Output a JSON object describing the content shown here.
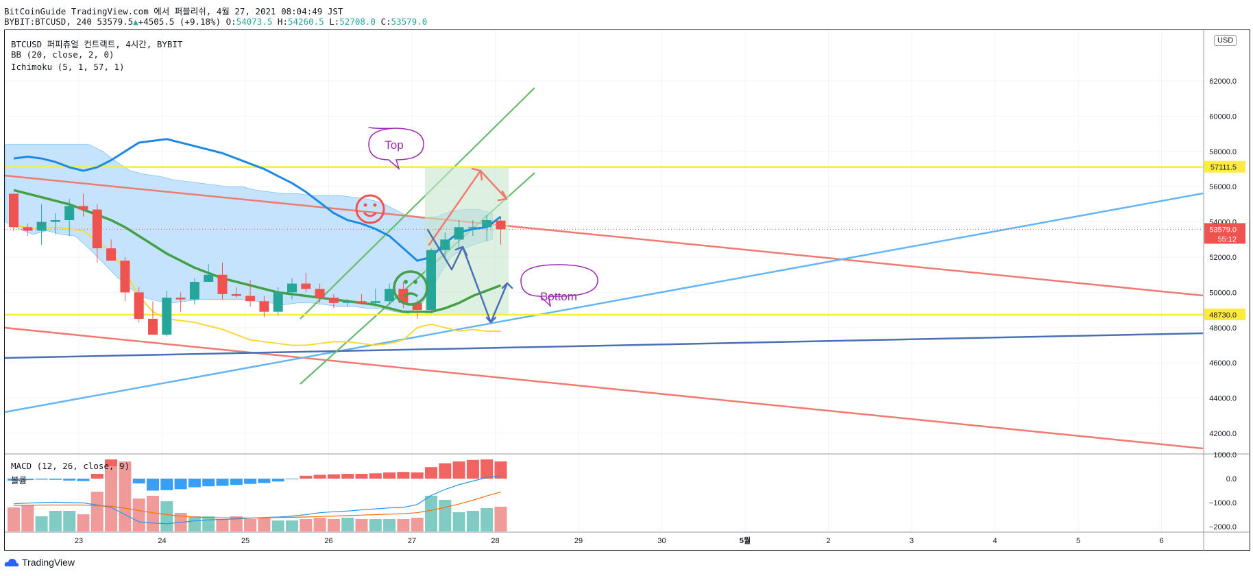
{
  "header": {
    "line1": "BitCoinGuide TradingView.com 에서 퍼블리쉬, 4월 27, 2021 08:04:49 JST",
    "symbol_tf": "BYBIT:BTCUSD, 240 53579.5",
    "up_arrow": "▲",
    "change": "+4505.5 (+9.18%)",
    "o_label": "O:",
    "o_val": "54073.5",
    "h_label": "H:",
    "h_val": "54260.5",
    "l_label": "L:",
    "l_val": "52708.0",
    "c_label": "C:",
    "c_val": "53579.0"
  },
  "legend": {
    "title": "BTCUSD 퍼피츄얼 컨트랙트, 4시간, BYBIT",
    "bb": "BB (20, close, 2, 0)",
    "ichimoku": "Ichimoku (5, 1, 57, 1)",
    "macd": "MACD (12, 26, close, 9)",
    "volume": "볼륨"
  },
  "currency_badge": "USD",
  "brand": "TradingView",
  "annotations": {
    "top": "Top",
    "bottom": "Bottom"
  },
  "colors": {
    "up": "#26a69a",
    "down": "#ef5350",
    "yellow": "#ffeb3b",
    "red_line": "#f07970",
    "green_line": "#66bb6a",
    "light_blue": "#64b5f6",
    "dark_blue": "#4a6fb5",
    "bubble": "#9c27b0",
    "cloud": "#bbdefb"
  },
  "chart_data": [
    {
      "type": "candlestick",
      "title": "BTCUSD 퍼피츄얼 컨트랙트, 4시간, BYBIT",
      "x_ticks": [
        "23",
        "24",
        "25",
        "26",
        "27",
        "28",
        "29",
        "30",
        "5월",
        "2",
        "3",
        "4",
        "5",
        "6"
      ],
      "y_ticks": [
        "42000.0",
        "44000.0",
        "46000.0",
        "48000.0",
        "50000.0",
        "52000.0",
        "54000.0",
        "56000.0",
        "58000.0",
        "60000.0",
        "62000.0"
      ],
      "ylim": [
        41200,
        64500
      ],
      "price_labels": [
        {
          "value": 57111.5,
          "text": "57111.5",
          "color": "#ffeb3b"
        },
        {
          "value": 48730.0,
          "text": "48730.0",
          "color": "#ffeb3b"
        },
        {
          "value": 53579.0,
          "text": "53579.0",
          "sub": "55:12",
          "color": "#ef5350"
        }
      ],
      "candles": [
        [
          55600,
          55500,
          53500,
          53700
        ],
        [
          53700,
          53900,
          53200,
          53500
        ],
        [
          53500,
          55000,
          52700,
          54000
        ],
        [
          54000,
          54500,
          53300,
          54100
        ],
        [
          54100,
          55300,
          53200,
          54900
        ],
        [
          54900,
          55600,
          54300,
          54700
        ],
        [
          54700,
          55000,
          51700,
          52500
        ],
        [
          52500,
          53000,
          51800,
          51800
        ],
        [
          51800,
          52000,
          49500,
          50000
        ],
        [
          50000,
          50300,
          48300,
          48500
        ],
        [
          48500,
          49500,
          47600,
          47600
        ],
        [
          47600,
          50100,
          47500,
          49700
        ],
        [
          49700,
          50000,
          48900,
          49600
        ],
        [
          49600,
          50800,
          49300,
          50600
        ],
        [
          50600,
          51600,
          50600,
          51000
        ],
        [
          51000,
          51700,
          49600,
          49900
        ],
        [
          49900,
          50300,
          49700,
          49800
        ],
        [
          49800,
          50700,
          49200,
          49500
        ],
        [
          49500,
          49800,
          48600,
          48900
        ],
        [
          48900,
          50300,
          48700,
          50000
        ],
        [
          50000,
          50800,
          49600,
          50500
        ],
        [
          50500,
          51100,
          50000,
          50200
        ],
        [
          50200,
          50500,
          49400,
          49700
        ],
        [
          49700,
          49900,
          49100,
          49400
        ],
        [
          49400,
          49600,
          49200,
          49500
        ],
        [
          49500,
          49900,
          49300,
          49400
        ],
        [
          49400,
          50200,
          49200,
          49500
        ],
        [
          49500,
          50500,
          49300,
          50200
        ],
        [
          50200,
          50600,
          49100,
          49400
        ],
        [
          49400,
          49600,
          48500,
          49000
        ],
        [
          49000,
          52500,
          48800,
          52400
        ],
        [
          52400,
          53400,
          52000,
          53000
        ],
        [
          53000,
          54100,
          52500,
          53700
        ],
        [
          53700,
          54100,
          53200,
          53700
        ],
        [
          53700,
          54400,
          52900,
          54100
        ],
        [
          54073.5,
          54260.5,
          52708,
          53579
        ]
      ],
      "bollinger_mid": [
        55800,
        55600,
        55400,
        55200,
        55000,
        54700,
        54400,
        54100,
        53700,
        53200,
        52700,
        52200,
        51800,
        51400,
        51100,
        50800,
        50600,
        50400,
        50200,
        50000,
        49900,
        49800,
        49700,
        49600,
        49500,
        49400,
        49300,
        49100,
        48900,
        48900,
        48900,
        49100,
        49400,
        49800,
        50100,
        50400
      ],
      "ichimoku_base": [
        57600,
        57700,
        57600,
        57400,
        57100,
        56900,
        57100,
        57500,
        58000,
        58500,
        58600,
        58700,
        58500,
        58300,
        58100,
        57900,
        57600,
        57300,
        57000,
        56600,
        56200,
        55700,
        55100,
        54500,
        54100,
        53900,
        53600,
        53200,
        52500,
        51800,
        52000,
        52800,
        53400,
        53600,
        53700,
        54300
      ],
      "ichimoku_conversion": [
        53800,
        53700,
        53600,
        53700,
        53600,
        53500,
        52900,
        52300,
        51200,
        49800,
        48900,
        48500,
        48400,
        48300,
        48100,
        47900,
        47600,
        47300,
        47200,
        47100,
        47000,
        47000,
        47100,
        47200,
        47200,
        47100,
        47000,
        47100,
        47300,
        48000,
        48200,
        48000,
        47800,
        47900,
        47800,
        47800
      ],
      "ichimoku_cloud_top": [
        58400,
        58400,
        58400,
        58400,
        58400,
        58400,
        58400,
        58000,
        57400,
        56900,
        56700,
        56600,
        56400,
        56300,
        56200,
        56100,
        56000,
        56000,
        55800,
        55700,
        55600,
        55600,
        55500,
        55500,
        55500,
        55400,
        55300,
        55100,
        54700,
        54300,
        54200,
        54300,
        54600,
        54700,
        54700,
        54500
      ],
      "ichimoku_cloud_bottom": [
        54000,
        53600,
        53300,
        53500,
        53300,
        53200,
        52500,
        51700,
        50900,
        50200,
        49700,
        49500,
        49400,
        49500,
        49600,
        49600,
        49600,
        49600,
        49500,
        49400,
        49300,
        49400,
        49400,
        49300,
        49200,
        49200,
        49100,
        49100,
        48900,
        48800,
        49400,
        50700,
        52000,
        52500,
        52800,
        53000
      ],
      "horizontal_levels": [
        57111.5,
        48730.0
      ],
      "last_price": 53579.0,
      "macd": {
        "title": "MACD (12, 26, close, 9)",
        "y_ticks": [
          "1000.0",
          "0.0",
          "−1000.0",
          "−2000.0"
        ],
        "ylim": [
          -2200,
          1100
        ],
        "volume_label": "볼륨",
        "histogram": [
          -80,
          -60,
          -40,
          -50,
          -80,
          -100,
          200,
          800,
          600,
          -200,
          -500,
          -480,
          -440,
          -360,
          -320,
          -300,
          -260,
          -220,
          -180,
          -120,
          -20,
          120,
          160,
          180,
          200,
          200,
          220,
          260,
          280,
          260,
          480,
          640,
          720,
          780,
          800,
          720
        ],
        "macd_line": [
          -1050,
          -1020,
          -1000,
          -980,
          -1000,
          -1010,
          -1100,
          -1200,
          -1500,
          -1800,
          -1850,
          -1880,
          -1820,
          -1760,
          -1720,
          -1700,
          -1680,
          -1650,
          -1620,
          -1600,
          -1560,
          -1500,
          -1420,
          -1380,
          -1350,
          -1300,
          -1260,
          -1220,
          -1200,
          -1080,
          -700,
          -450,
          -250,
          -100,
          50,
          120
        ],
        "signal_line": [
          -1120,
          -1110,
          -1100,
          -1100,
          -1100,
          -1100,
          -1130,
          -1150,
          -1230,
          -1330,
          -1420,
          -1500,
          -1560,
          -1600,
          -1620,
          -1630,
          -1640,
          -1640,
          -1630,
          -1620,
          -1610,
          -1600,
          -1580,
          -1560,
          -1540,
          -1520,
          -1500,
          -1480,
          -1460,
          -1420,
          -1320,
          -1200,
          -1060,
          -900,
          -720,
          -560
        ]
      }
    }
  ]
}
